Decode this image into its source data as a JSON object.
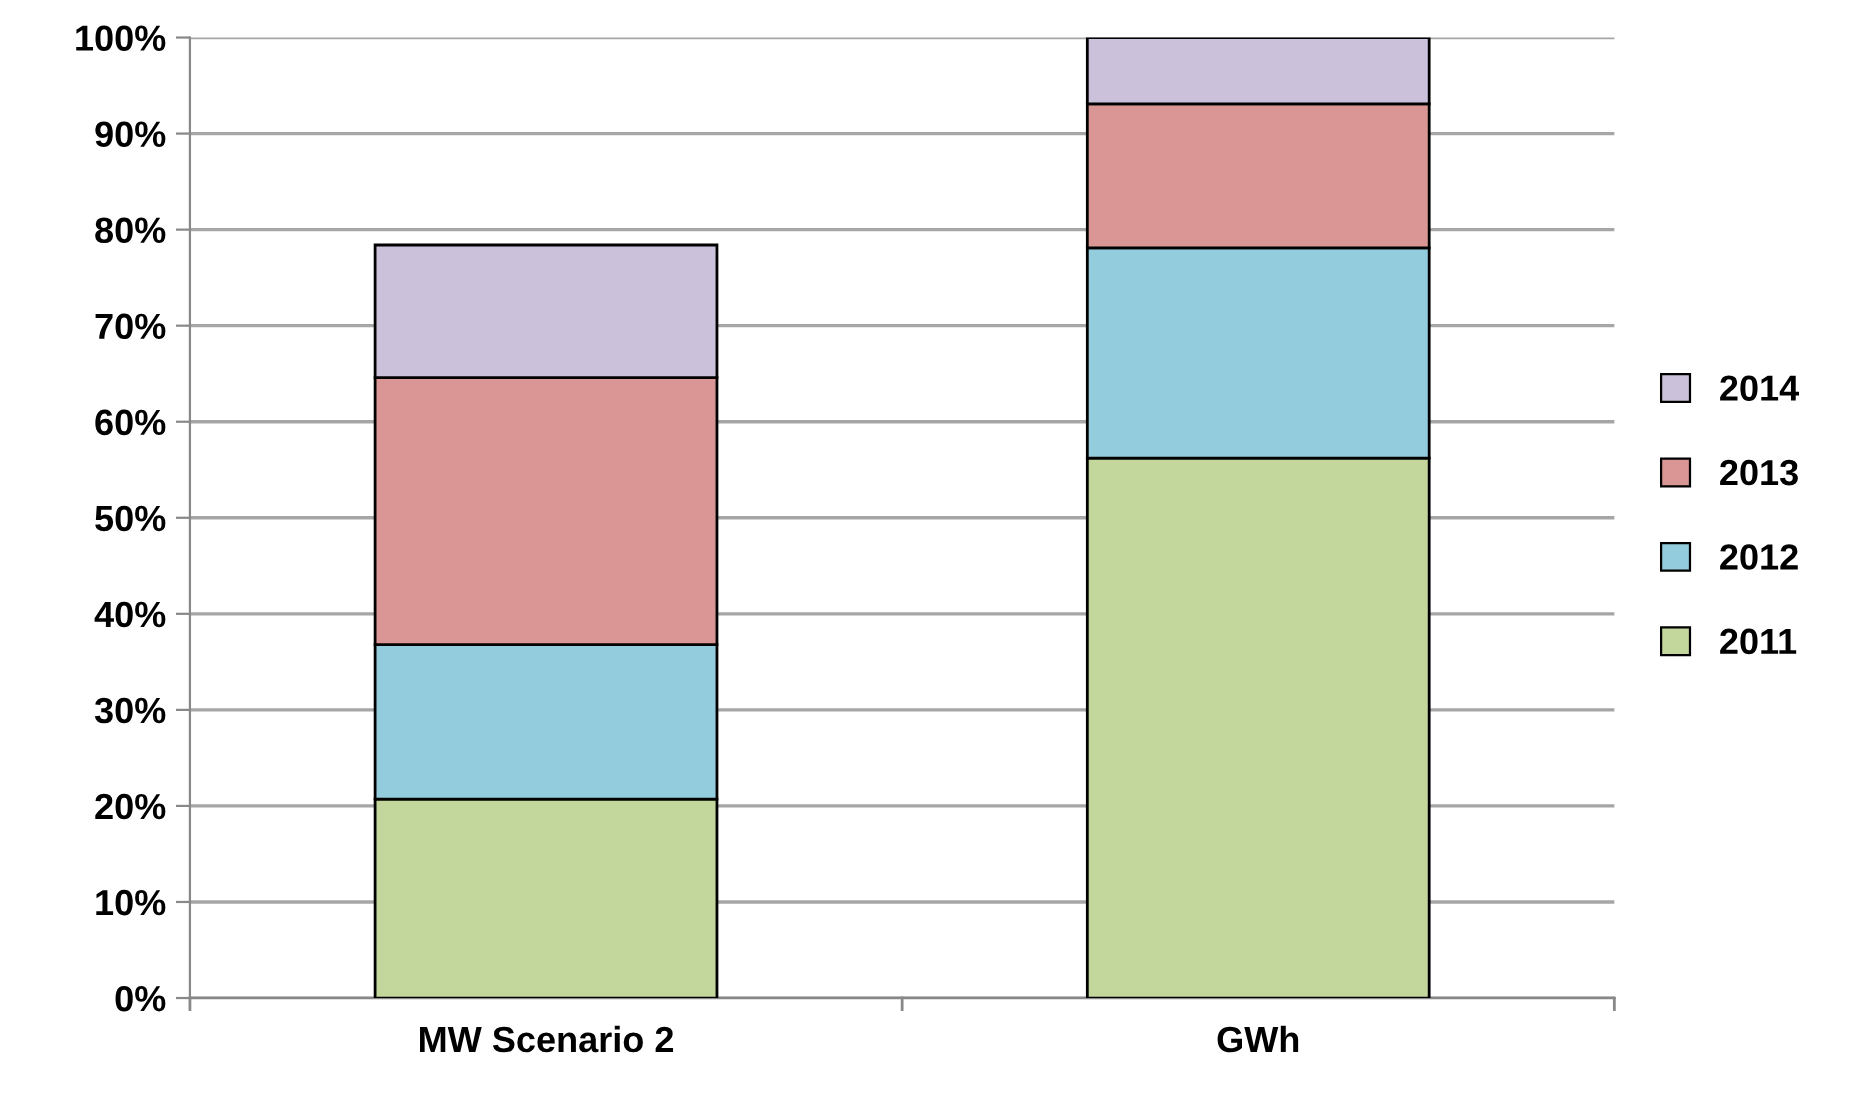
{
  "chart_data": {
    "type": "bar",
    "stacked": true,
    "categories": [
      "MW Scenario 2",
      "GWh"
    ],
    "series": [
      {
        "name": "2011",
        "color": "#c3d69b",
        "values": [
          20.7,
          56.2
        ]
      },
      {
        "name": "2012",
        "color": "#93cddd",
        "values": [
          16.1,
          21.9
        ]
      },
      {
        "name": "2013",
        "color": "#d99694",
        "values": [
          27.8,
          15.0
        ]
      },
      {
        "name": "2014",
        "color": "#ccc1da",
        "values": [
          13.8,
          6.9
        ]
      }
    ],
    "ylim": [
      0,
      100
    ],
    "yticks": [
      {
        "value": 0,
        "label": "0%"
      },
      {
        "value": 10,
        "label": "10%"
      },
      {
        "value": 20,
        "label": "20%"
      },
      {
        "value": 30,
        "label": "30%"
      },
      {
        "value": 40,
        "label": "40%"
      },
      {
        "value": 50,
        "label": "50%"
      },
      {
        "value": 60,
        "label": "60%"
      },
      {
        "value": 70,
        "label": "70%"
      },
      {
        "value": 80,
        "label": "80%"
      },
      {
        "value": 90,
        "label": "90%"
      },
      {
        "value": 100,
        "label": "100%"
      }
    ],
    "grid": "y",
    "legend": "right"
  }
}
